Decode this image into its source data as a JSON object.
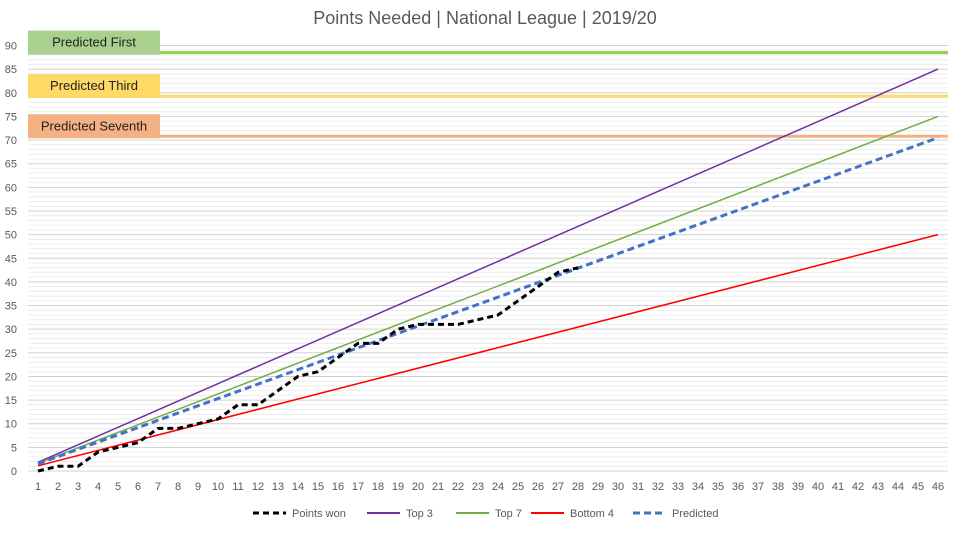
{
  "chart_data": {
    "type": "line",
    "title": "Points Needed | National League | 2019/20",
    "xlabel": "",
    "ylabel": "",
    "categories": [
      1,
      2,
      3,
      4,
      5,
      6,
      7,
      8,
      9,
      10,
      11,
      12,
      13,
      14,
      15,
      16,
      17,
      18,
      19,
      20,
      21,
      22,
      23,
      24,
      25,
      26,
      27,
      28,
      29,
      30,
      31,
      32,
      33,
      34,
      35,
      36,
      37,
      38,
      39,
      40,
      41,
      42,
      43,
      44,
      45,
      46
    ],
    "ylim": [
      0,
      90
    ],
    "y_ticks": [
      0,
      5,
      10,
      15,
      20,
      25,
      30,
      35,
      40,
      45,
      50,
      55,
      60,
      65,
      70,
      75,
      80,
      85,
      90
    ],
    "grid": true,
    "reference_lines": [
      {
        "label": "Predicted First",
        "value": 88.5,
        "color": "#92d050",
        "box_color": "#a9d18e"
      },
      {
        "label": "Predicted Third",
        "value": 79.3,
        "color": "#ffd966",
        "box_color": "#ffd966"
      },
      {
        "label": "Predicted Seventh",
        "value": 70.8,
        "color": "#f4b183",
        "box_color": "#f4b183"
      }
    ],
    "series": [
      {
        "name": "Points won",
        "color": "#000000",
        "dash": "6,4",
        "width": 3,
        "x": [
          1,
          2,
          3,
          4,
          5,
          6,
          7,
          8,
          9,
          10,
          11,
          12,
          13,
          14,
          15,
          16,
          17,
          18,
          19,
          20,
          21,
          22,
          23,
          24,
          25,
          26,
          27,
          28
        ],
        "values": [
          0,
          1,
          1,
          4,
          5,
          6,
          9,
          9,
          10,
          11,
          14,
          14,
          17,
          20,
          21,
          24,
          27,
          27,
          30,
          31,
          31,
          31,
          32,
          33,
          36,
          39,
          42,
          43
        ]
      },
      {
        "name": "Top 3",
        "color": "#7030a0",
        "width": 1.5,
        "x": [
          1,
          46
        ],
        "values": [
          1.85,
          85
        ]
      },
      {
        "name": "Top 7",
        "color": "#70ad47",
        "width": 1.5,
        "x": [
          1,
          46
        ],
        "values": [
          1.63,
          75
        ]
      },
      {
        "name": "Bottom 4",
        "color": "#ff0000",
        "width": 1.5,
        "x": [
          1,
          46
        ],
        "values": [
          1.09,
          50
        ]
      },
      {
        "name": "Predicted",
        "color": "#4472c4",
        "dash": "7,4",
        "width": 3,
        "x": [
          1,
          46
        ],
        "values": [
          1.53,
          70.5
        ]
      }
    ]
  }
}
